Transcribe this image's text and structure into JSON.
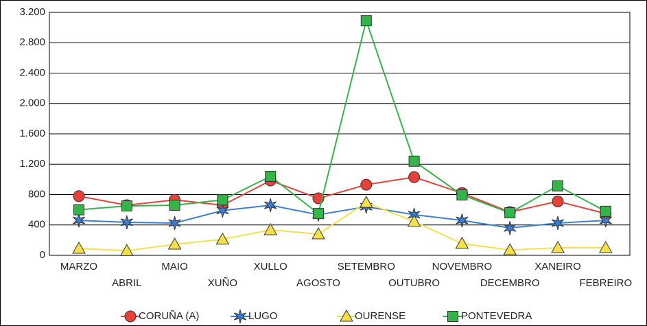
{
  "chart_data": {
    "type": "line",
    "categories": [
      "MARZO",
      "ABRIL",
      "MAIO",
      "XUÑO",
      "XULLO",
      "AGOSTO",
      "SETEMBRO",
      "OUTUBRO",
      "NOVEMBRO",
      "DECEMBRO",
      "XANEIRO",
      "FEBREIRO"
    ],
    "series": [
      {
        "name": "CORUÑA (A)",
        "color": "#e8413a",
        "marker": "circle",
        "values": [
          780,
          660,
          730,
          660,
          985,
          750,
          930,
          1030,
          820,
          570,
          710,
          550
        ]
      },
      {
        "name": "LUGO",
        "color": "#3a7fd6",
        "marker": "star",
        "values": [
          460,
          435,
          425,
          590,
          660,
          535,
          640,
          535,
          460,
          360,
          425,
          460
        ]
      },
      {
        "name": "OURENSE",
        "color": "#f5e04a",
        "marker": "triangle",
        "values": [
          90,
          60,
          145,
          210,
          335,
          280,
          695,
          445,
          155,
          70,
          100,
          100
        ]
      },
      {
        "name": "PONTEVEDRA",
        "color": "#33b54a",
        "marker": "square",
        "values": [
          600,
          650,
          660,
          730,
          1040,
          550,
          3090,
          1240,
          795,
          560,
          915,
          580
        ]
      }
    ],
    "ylim": [
      0,
      3200
    ],
    "yticks": [
      0,
      {
        "value": 400,
        "label": "400"
      },
      {
        "value": 800,
        "label": "800"
      },
      {
        "value": 1200,
        "label": "1.200"
      },
      {
        "value": 1600,
        "label": "1.600"
      },
      {
        "value": 2000,
        "label": "2.000"
      },
      {
        "value": 2400,
        "label": "2.400"
      },
      {
        "value": 2800,
        "label": "2.800"
      },
      {
        "value": 3200,
        "label": "3.200"
      }
    ],
    "grid": true
  }
}
